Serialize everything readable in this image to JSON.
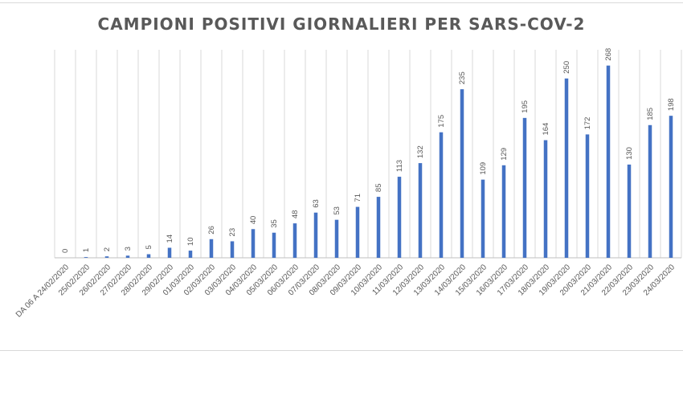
{
  "chart_data": {
    "type": "bar",
    "title": "CAMPIONI POSITIVI GIORNALIERI PER SARS-COV-2",
    "xlabel": "",
    "ylabel": "",
    "ylim": [
      0,
      290
    ],
    "grid": "vertical lines between categories",
    "legend": "none",
    "bar_color": "#4472c4",
    "categories": [
      "DA 06 A 24/02/2020",
      "25/02/2020",
      "26/02/2020",
      "27/02/2020",
      "28/02/2020",
      "29/02/2020",
      "01/03/2020",
      "02/03/2020",
      "03/03/2020",
      "04/03/2020",
      "05/03/2020",
      "06/03/2020",
      "07/03/2020",
      "08/03/2020",
      "09/03/2020",
      "10/03/2020",
      "11/03/2020",
      "12/03/2020",
      "13/03/2020",
      "14/03/2020",
      "15/03/2020",
      "16/03/2020",
      "17/03/2020",
      "18/03/2020",
      "19/03/2020",
      "20/03/2020",
      "21/03/2020",
      "22/03/2020",
      "23/03/2020",
      "24/03/2020"
    ],
    "values": [
      0,
      1,
      2,
      3,
      5,
      14,
      10,
      26,
      23,
      40,
      35,
      48,
      63,
      53,
      71,
      85,
      113,
      132,
      175,
      235,
      109,
      129,
      195,
      164,
      250,
      172,
      268,
      130,
      185,
      198
    ]
  }
}
